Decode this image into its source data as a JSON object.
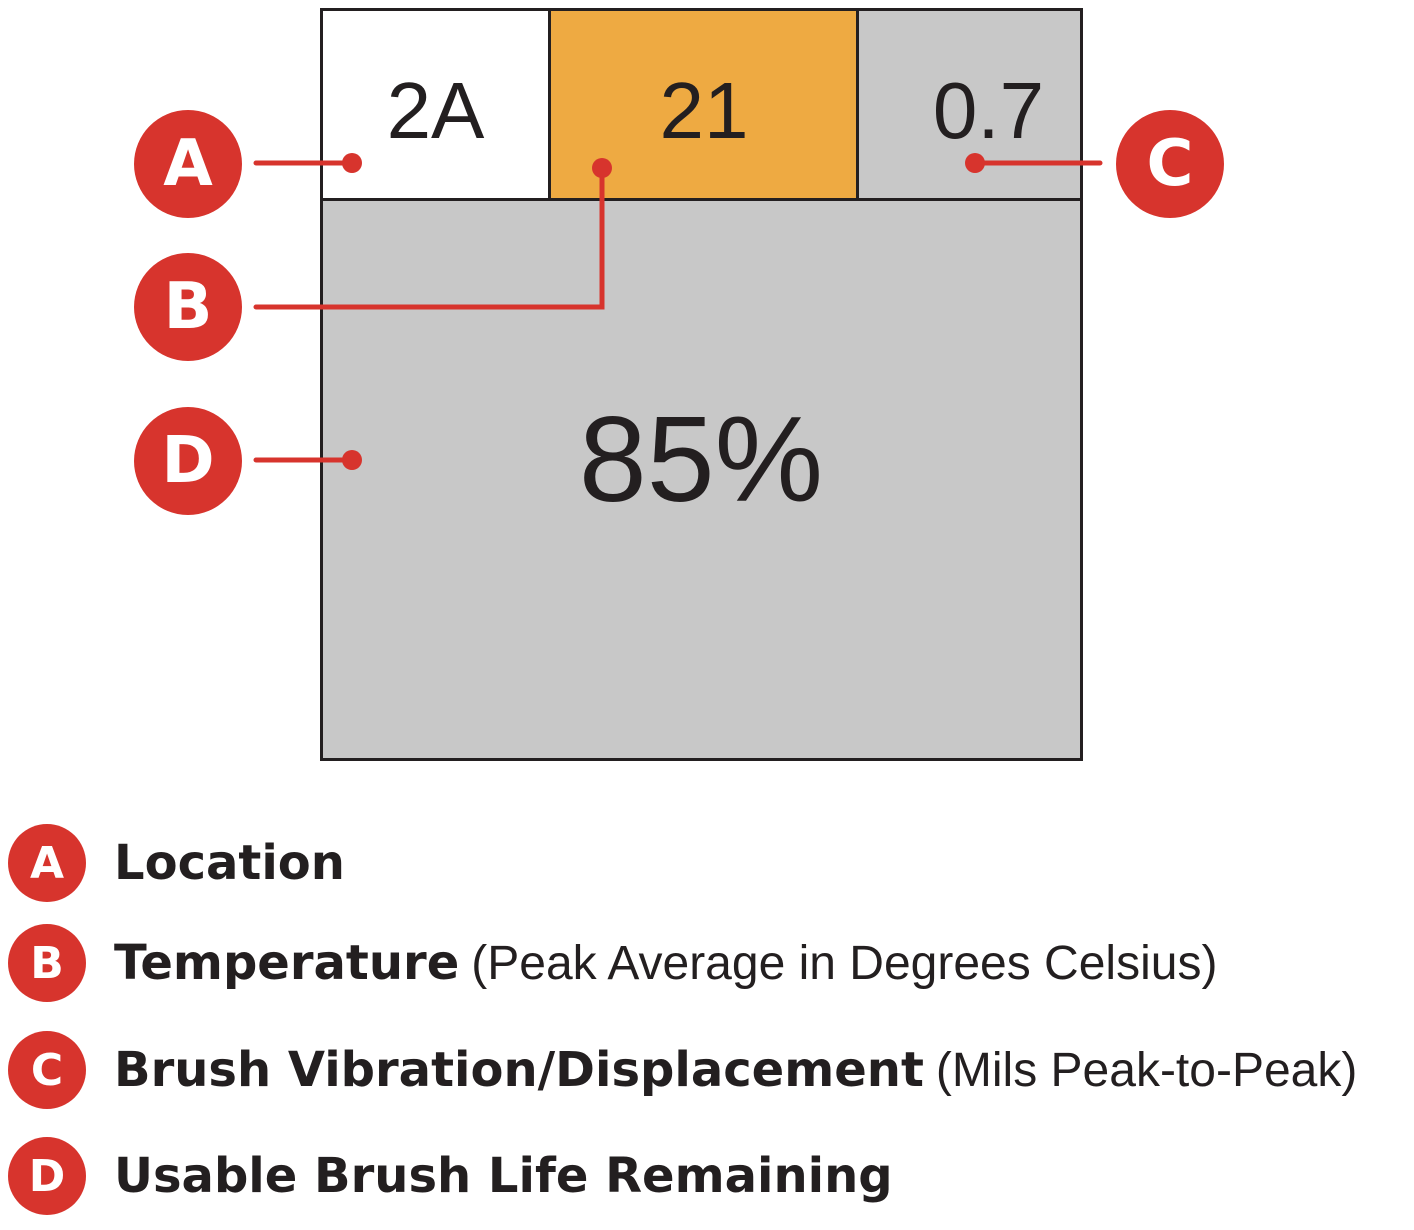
{
  "colors": {
    "accent_red": "#d7342d",
    "temperature_fill": "#eeaa42",
    "cell_gray": "#c8c8c8",
    "cell_white": "#ffffff",
    "border": "#231f20"
  },
  "diagram": {
    "location_value": "2A",
    "temperature_value": "21",
    "vibration_value": "0.7",
    "brush_life_value": "85%",
    "callouts": [
      "A",
      "B",
      "C",
      "D"
    ]
  },
  "legend": {
    "items": [
      {
        "letter": "A",
        "label": "Location",
        "desc": ""
      },
      {
        "letter": "B",
        "label": "Temperature",
        "desc": "(Peak Average in Degrees Celsius)"
      },
      {
        "letter": "C",
        "label": "Brush Vibration/Displacement",
        "desc": "(Mils Peak-to-Peak)"
      },
      {
        "letter": "D",
        "label": "Usable Brush Life Remaining",
        "desc": ""
      }
    ]
  }
}
